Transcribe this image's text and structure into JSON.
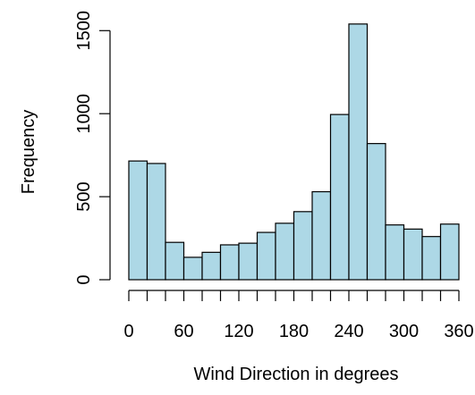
{
  "chart_data": {
    "type": "bar",
    "title": "",
    "xlabel": "Wind Direction in degrees",
    "ylabel": "Frequency",
    "bin_edges": [
      0,
      20,
      40,
      60,
      80,
      100,
      120,
      140,
      160,
      180,
      200,
      220,
      240,
      260,
      280,
      300,
      320,
      340,
      360
    ],
    "values": [
      715,
      700,
      225,
      135,
      165,
      210,
      220,
      285,
      340,
      410,
      530,
      995,
      1540,
      820,
      330,
      305,
      260,
      335
    ],
    "xlim": [
      0,
      360
    ],
    "ylim": [
      0,
      1550
    ],
    "x_ticks": [
      0,
      60,
      120,
      180,
      240,
      300,
      360
    ],
    "x_tick_labels": [
      "0",
      "60",
      "120",
      "180",
      "240",
      "300",
      "360"
    ],
    "y_ticks": [
      0,
      500,
      1000,
      1500
    ],
    "y_tick_labels": [
      "0",
      "500",
      "1000",
      "1500"
    ],
    "bar_color": "#add8e6",
    "edge_color": "#000000",
    "grid": false,
    "legend": "none"
  }
}
